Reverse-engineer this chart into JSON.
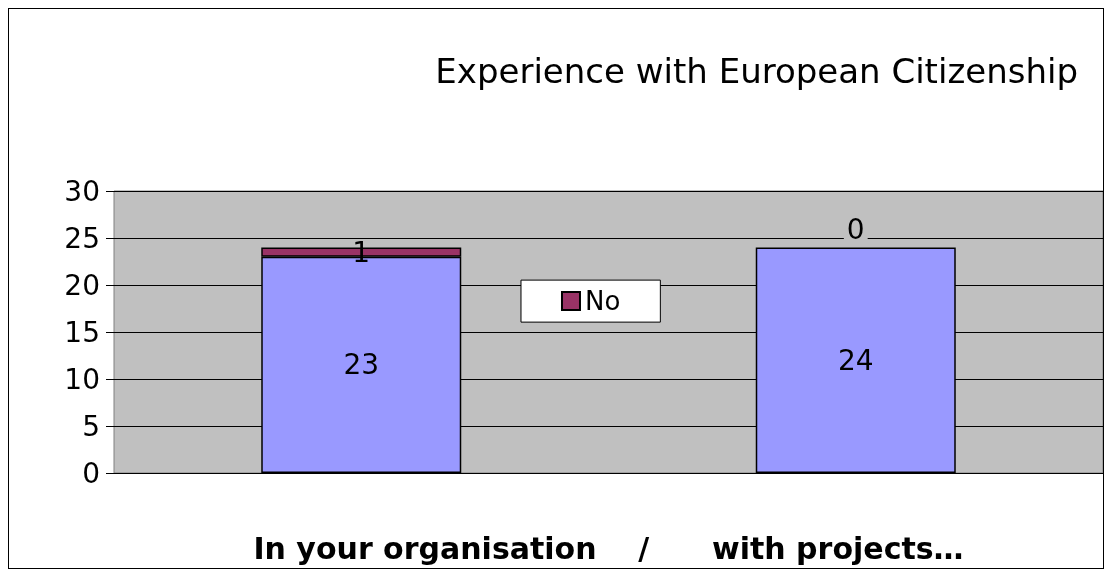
{
  "chart_data": {
    "type": "bar",
    "title": "Experience with European Citizenship",
    "xlabel": "In your organisation    /      with projects…",
    "categories": [
      null,
      null
    ],
    "stacked": true,
    "series": [
      {
        "color": "#9999ff",
        "values": [
          23,
          24
        ]
      },
      {
        "name": "No",
        "color": "#993366",
        "values": [
          1,
          0
        ]
      }
    ],
    "ylim": [
      0,
      30
    ],
    "yticks": [
      0,
      5,
      10,
      15,
      20,
      25,
      30
    ],
    "grid": "y",
    "legend": "center",
    "data_labels": true
  }
}
